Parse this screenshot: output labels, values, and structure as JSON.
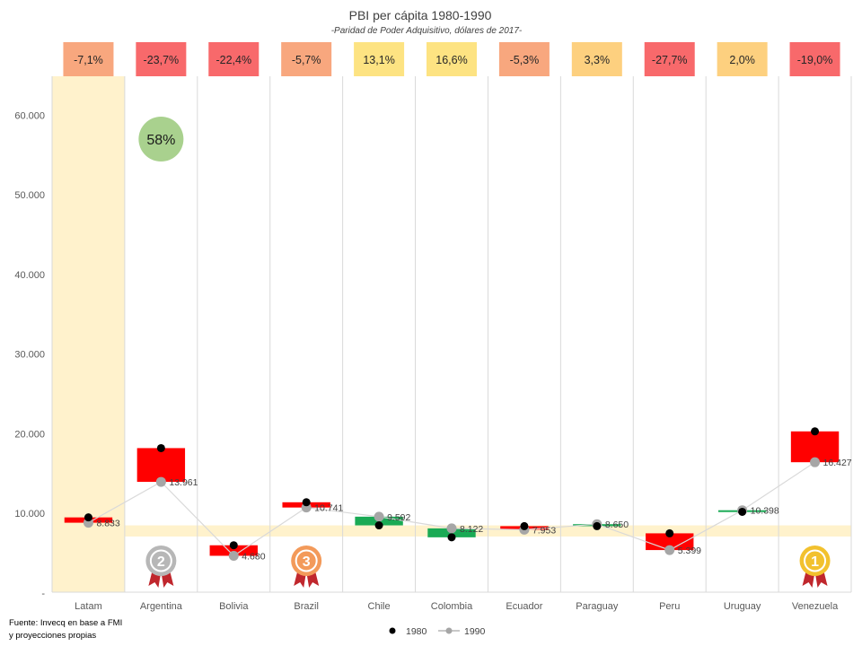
{
  "chart_data": {
    "type": "bar",
    "title": "PBI per cápita 1980-1990",
    "subtitle": "-Paridad de Poder Adquisitivo, dólares de 2017-",
    "categories": [
      "Latam",
      "Argentina",
      "Bolivia",
      "Brazil",
      "Chile",
      "Colombia",
      "Ecuador",
      "Paraguay",
      "Peru",
      "Uruguay",
      "Venezuela"
    ],
    "series": [
      {
        "name": "1980",
        "values": [
          9500,
          18200,
          6000,
          11400,
          8500,
          7000,
          8400,
          8400,
          7500,
          10200,
          20300
        ]
      },
      {
        "name": "1990",
        "values": [
          8833,
          13961,
          4680,
          10741,
          9592,
          8122,
          7953,
          8650,
          5399,
          10398,
          16427
        ]
      }
    ],
    "value_labels": [
      "8.833",
      "13.961",
      "4.680",
      "10.741",
      "9.592",
      "8.122",
      "7.953",
      "8.650",
      "5.399",
      "10.398",
      "16.427"
    ],
    "change_labels": [
      "-7,1%",
      "-23,7%",
      "-22,4%",
      "-5,7%",
      "13,1%",
      "16,6%",
      "-5,3%",
      "3,3%",
      "-27,7%",
      "2,0%",
      "-19,0%"
    ],
    "change_colors": [
      "#f8a77e",
      "#f8696b",
      "#f8696b",
      "#f8a77e",
      "#fde382",
      "#fde382",
      "#f8a77e",
      "#fdd07f",
      "#f8696b",
      "#fdd07f",
      "#f8696b"
    ],
    "ylim": [
      0,
      65000
    ],
    "yticks": [
      {
        "value": 0,
        "label": "-"
      },
      {
        "value": 10000,
        "label": "10.000"
      },
      {
        "value": 20000,
        "label": "20.000"
      },
      {
        "value": 30000,
        "label": "30.000"
      },
      {
        "value": 40000,
        "label": "40.000"
      },
      {
        "value": 50000,
        "label": "50.000"
      },
      {
        "value": 60000,
        "label": "60.000"
      }
    ],
    "band_range": [
      7100,
      8500
    ],
    "highlight_category": "Latam",
    "bubble": {
      "category": "Argentina",
      "value": 57000,
      "label": "58%"
    },
    "medals": [
      {
        "category": "Argentina",
        "rank": "2",
        "color": "#b7b7b7"
      },
      {
        "category": "Brazil",
        "rank": "3",
        "color": "#f39a5a"
      },
      {
        "category": "Venezuela",
        "rank": "1",
        "color": "#f2c12e"
      }
    ],
    "up_color": "#1aaa55",
    "down_color": "#ff0000",
    "legend": {
      "position": "bottom"
    },
    "source": [
      "Fuente: Invecq en base a FMI",
      "y proyecciones propias"
    ]
  }
}
